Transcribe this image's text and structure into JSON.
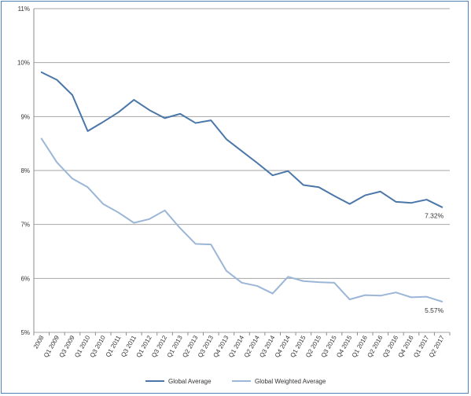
{
  "chart_data": {
    "type": "line",
    "title": "",
    "xlabel": "",
    "ylabel": "",
    "ylim": [
      5,
      11
    ],
    "yticks": [
      "5%",
      "6%",
      "7%",
      "8%",
      "9%",
      "10%",
      "11%"
    ],
    "grid": true,
    "legend_position": "bottom",
    "categories": [
      "2008",
      "Q1 2009",
      "Q3 2009",
      "Q1 2010",
      "Q3 2010",
      "Q1 2011",
      "Q3 2011",
      "Q1 2012",
      "Q3 2012",
      "Q1 2013",
      "Q2 2013",
      "Q3 2013",
      "Q4 2013",
      "Q1 2014",
      "Q2 2014",
      "Q3 2014",
      "Q4 2014",
      "Q1 2015",
      "Q2 2015",
      "Q3 2015",
      "Q4 2015",
      "Q1 2016",
      "Q2 2016",
      "Q3 2016",
      "Q4 2016",
      "Q1 2017",
      "Q2 2017"
    ],
    "series": [
      {
        "name": "Global Average",
        "color": "#4a77a8",
        "values": [
          9.82,
          9.68,
          9.4,
          8.73,
          8.9,
          9.08,
          9.31,
          9.12,
          8.97,
          9.05,
          8.88,
          8.93,
          8.58,
          8.36,
          8.14,
          7.91,
          7.99,
          7.73,
          7.69,
          7.53,
          7.38,
          7.54,
          7.61,
          7.42,
          7.4,
          7.46,
          7.32
        ],
        "end_label": "7.32%"
      },
      {
        "name": "Global Weighted Average",
        "color": "#9bb6d6",
        "values": [
          8.59,
          8.15,
          7.85,
          7.69,
          7.38,
          7.22,
          7.03,
          7.1,
          7.26,
          6.93,
          6.64,
          6.63,
          6.14,
          5.92,
          5.86,
          5.72,
          6.03,
          5.95,
          5.93,
          5.92,
          5.61,
          5.69,
          5.68,
          5.74,
          5.65,
          5.66,
          5.57
        ],
        "end_label": "5.57%"
      }
    ]
  }
}
